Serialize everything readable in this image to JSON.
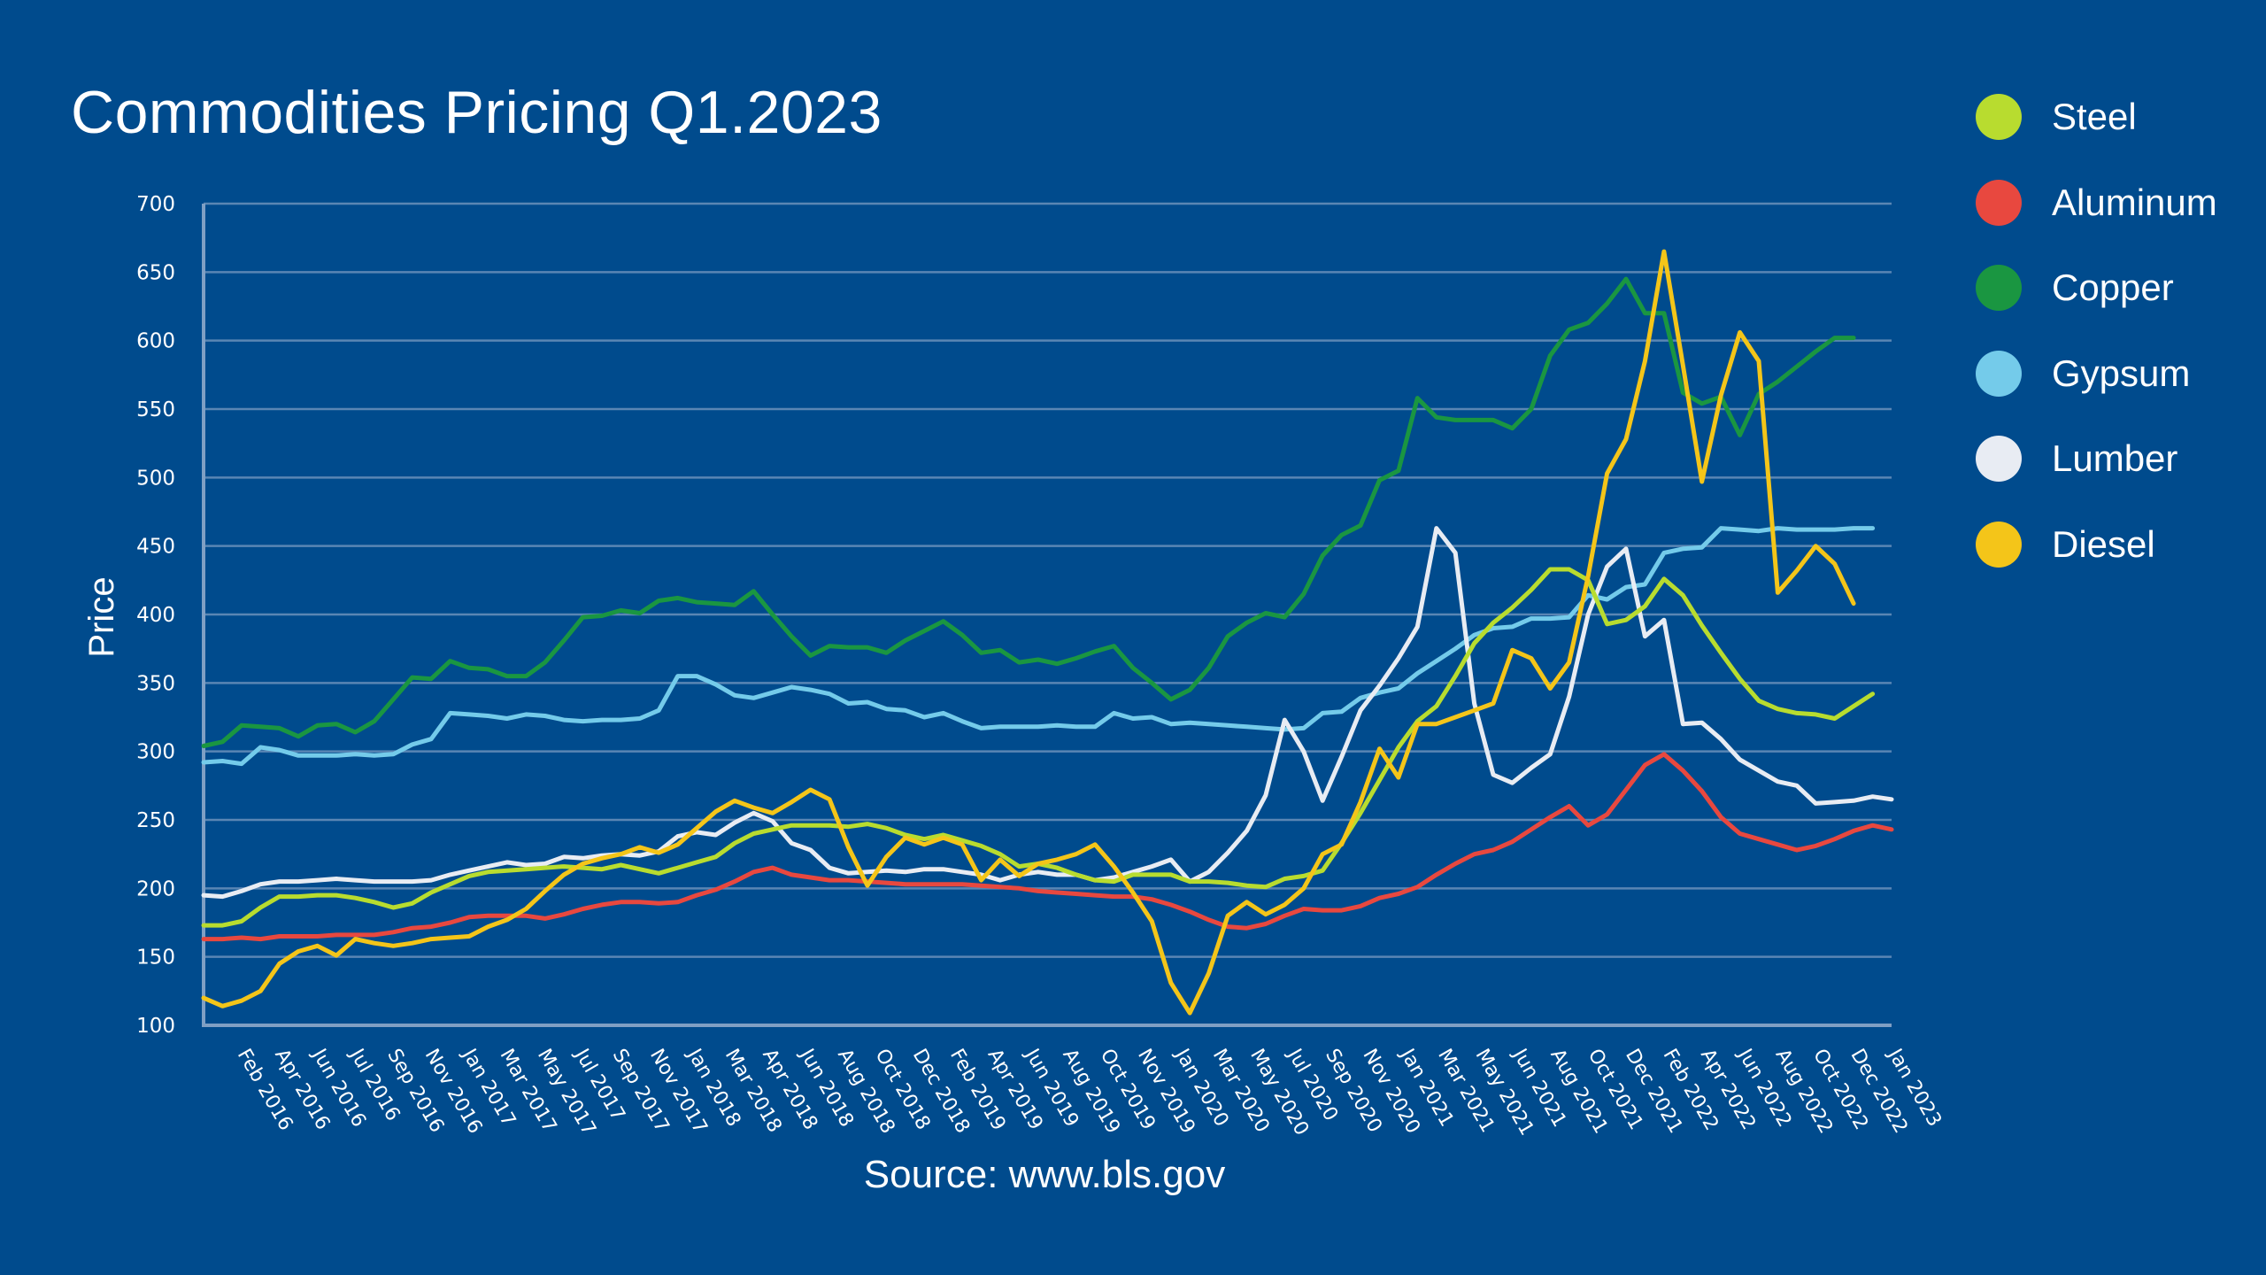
{
  "colors": {
    "background": "#004b8d",
    "grid": "#5a86b4",
    "axis": "#7f9fc4",
    "text": "#ffffff"
  },
  "chart_data": {
    "type": "line",
    "title": "Commodities Pricing Q1.2023",
    "source": "Source: www.bls.gov",
    "xlabel": "",
    "ylabel": "Price",
    "ylim": [
      100,
      700
    ],
    "yticks": [
      100,
      150,
      200,
      250,
      300,
      350,
      400,
      450,
      500,
      550,
      600,
      650,
      700
    ],
    "grid": true,
    "legend_position": "right",
    "x_start": "Jan 2016",
    "x_labels": [
      "Feb 2016",
      "Apr 2016",
      "Jun 2016",
      "Jul 2016",
      "Sep 2016",
      "Nov 2016",
      "Jan 2017",
      "Mar 2017",
      "May 2017",
      "Jul 2017",
      "Sep 2017",
      "Nov 2017",
      "Jan 2018",
      "Mar 2018",
      "Apr 2018",
      "Jun 2018",
      "Aug 2018",
      "Oct 2018",
      "Dec 2018",
      "Feb 2019",
      "Apr 2019",
      "Jun 2019",
      "Aug 2019",
      "Oct 2019",
      "Nov 2019",
      "Jan 2020",
      "Mar 2020",
      "May 2020",
      "Jul 2020",
      "Sep 2020",
      "Nov 2020",
      "Jan 2021",
      "Mar 2021",
      "May 2021",
      "Jun 2021",
      "Aug 2021",
      "Oct 2021",
      "Dec 2021",
      "Feb 2022",
      "Apr 2022",
      "Jun 2022",
      "Aug 2022",
      "Oct 2022",
      "Dec 2022",
      "Jan 2023"
    ],
    "series": [
      {
        "name": "Copper",
        "color": "#1a9641",
        "values": [
          304,
          307,
          319,
          318,
          317,
          311,
          319,
          320,
          314,
          322,
          338,
          354,
          353,
          366,
          361,
          360,
          355,
          355,
          365,
          381,
          398,
          399,
          403,
          401,
          410,
          412,
          409,
          408,
          407,
          417,
          400,
          384,
          370,
          377,
          376,
          376,
          372,
          381,
          388,
          395,
          385,
          372,
          374,
          365,
          367,
          364,
          368,
          373,
          377,
          361,
          350,
          338,
          345,
          361,
          384,
          394,
          401,
          398,
          415,
          443,
          458,
          465,
          498,
          505,
          558,
          544,
          542,
          542,
          542,
          536,
          550,
          589,
          608,
          613,
          627,
          645,
          620,
          620,
          562,
          554,
          559,
          531,
          561,
          570,
          581,
          592,
          602,
          602
        ]
      },
      {
        "name": "Gypsum",
        "color": "#74cbea",
        "values": [
          292,
          293,
          291,
          303,
          301,
          297,
          297,
          297,
          298,
          297,
          298,
          305,
          309,
          328,
          327,
          326,
          324,
          327,
          326,
          323,
          322,
          323,
          323,
          324,
          330,
          355,
          355,
          349,
          341,
          339,
          343,
          347,
          345,
          342,
          335,
          336,
          331,
          330,
          325,
          328,
          322,
          317,
          318,
          318,
          318,
          319,
          318,
          318,
          328,
          324,
          325,
          320,
          321,
          320,
          319,
          318,
          317,
          316,
          317,
          328,
          329,
          339,
          343,
          346,
          357,
          366,
          375,
          385,
          390,
          391,
          397,
          397,
          398,
          414,
          411,
          420,
          422,
          445,
          448,
          449,
          463,
          462,
          461,
          463,
          462,
          462,
          462,
          463,
          463
        ]
      },
      {
        "name": "Lumber",
        "color": "#e8ecf3",
        "values": [
          195,
          194,
          198,
          203,
          205,
          205,
          206,
          207,
          206,
          205,
          205,
          205,
          206,
          210,
          213,
          216,
          219,
          217,
          218,
          223,
          222,
          224,
          225,
          224,
          227,
          238,
          241,
          239,
          248,
          255,
          249,
          233,
          228,
          215,
          211,
          212,
          213,
          212,
          214,
          214,
          212,
          210,
          206,
          210,
          212,
          210,
          210,
          206,
          208,
          212,
          216,
          221,
          205,
          212,
          226,
          242,
          268,
          323,
          300,
          264,
          296,
          330,
          348,
          368,
          391,
          463,
          445,
          335,
          283,
          277,
          288,
          298,
          340,
          400,
          435,
          448,
          384,
          396,
          320,
          321,
          309,
          294,
          286,
          278,
          275,
          262,
          263,
          264,
          267,
          265
        ]
      },
      {
        "name": "Steel",
        "color": "#b8dc2f",
        "values": [
          173,
          173,
          176,
          186,
          194,
          194,
          195,
          195,
          193,
          190,
          186,
          189,
          197,
          203,
          209,
          212,
          213,
          214,
          215,
          216,
          215,
          214,
          217,
          214,
          211,
          215,
          219,
          223,
          233,
          240,
          243,
          246,
          246,
          246,
          245,
          247,
          244,
          239,
          236,
          239,
          235,
          231,
          225,
          216,
          218,
          215,
          210,
          206,
          205,
          210,
          210,
          210,
          205,
          205,
          204,
          202,
          201,
          207,
          209,
          213,
          233,
          255,
          279,
          303,
          322,
          333,
          355,
          379,
          394,
          405,
          418,
          433,
          433,
          425,
          393,
          396,
          406,
          426,
          414,
          392,
          372,
          353,
          337,
          331,
          328,
          327,
          324,
          333,
          342
        ]
      },
      {
        "name": "Aluminum",
        "color": "#e8483f",
        "values": [
          163,
          163,
          164,
          163,
          165,
          165,
          165,
          166,
          166,
          166,
          168,
          171,
          172,
          175,
          179,
          180,
          180,
          180,
          178,
          181,
          185,
          188,
          190,
          190,
          189,
          190,
          195,
          199,
          205,
          212,
          215,
          210,
          208,
          206,
          206,
          205,
          204,
          203,
          203,
          203,
          203,
          202,
          201,
          200,
          198,
          197,
          196,
          195,
          194,
          194,
          192,
          188,
          183,
          177,
          172,
          171,
          174,
          180,
          185,
          184,
          184,
          187,
          193,
          196,
          201,
          210,
          218,
          225,
          228,
          234,
          243,
          252,
          260,
          246,
          254,
          272,
          290,
          298,
          286,
          271,
          252,
          240,
          236,
          232,
          228,
          231,
          236,
          242,
          246,
          243
        ]
      },
      {
        "name": "Diesel",
        "color": "#f4c519",
        "values": [
          120,
          114,
          118,
          125,
          145,
          154,
          158,
          151,
          163,
          160,
          158,
          160,
          163,
          164,
          165,
          172,
          177,
          185,
          198,
          210,
          218,
          222,
          225,
          230,
          226,
          232,
          244,
          256,
          264,
          259,
          255,
          263,
          272,
          265,
          230,
          202,
          223,
          237,
          232,
          237,
          232,
          206,
          221,
          209,
          218,
          221,
          225,
          232,
          216,
          197,
          176,
          131,
          109,
          138,
          180,
          190,
          181,
          188,
          200,
          225,
          232,
          263,
          302,
          281,
          320,
          320,
          325,
          330,
          335,
          374,
          368,
          346,
          365,
          428,
          503,
          528,
          585,
          665,
          582,
          497,
          560,
          606,
          585,
          416,
          432,
          450,
          437,
          408
        ]
      }
    ]
  }
}
